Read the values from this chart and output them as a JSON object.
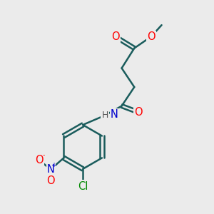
{
  "bg_color": "#ebebeb",
  "bond_color": "#1a5c5c",
  "atom_colors": {
    "O": "#ff0000",
    "N": "#0000cc",
    "Cl": "#008800",
    "C": "#000000",
    "H": "#555555"
  },
  "bond_width": 1.8,
  "font_size": 10.5
}
